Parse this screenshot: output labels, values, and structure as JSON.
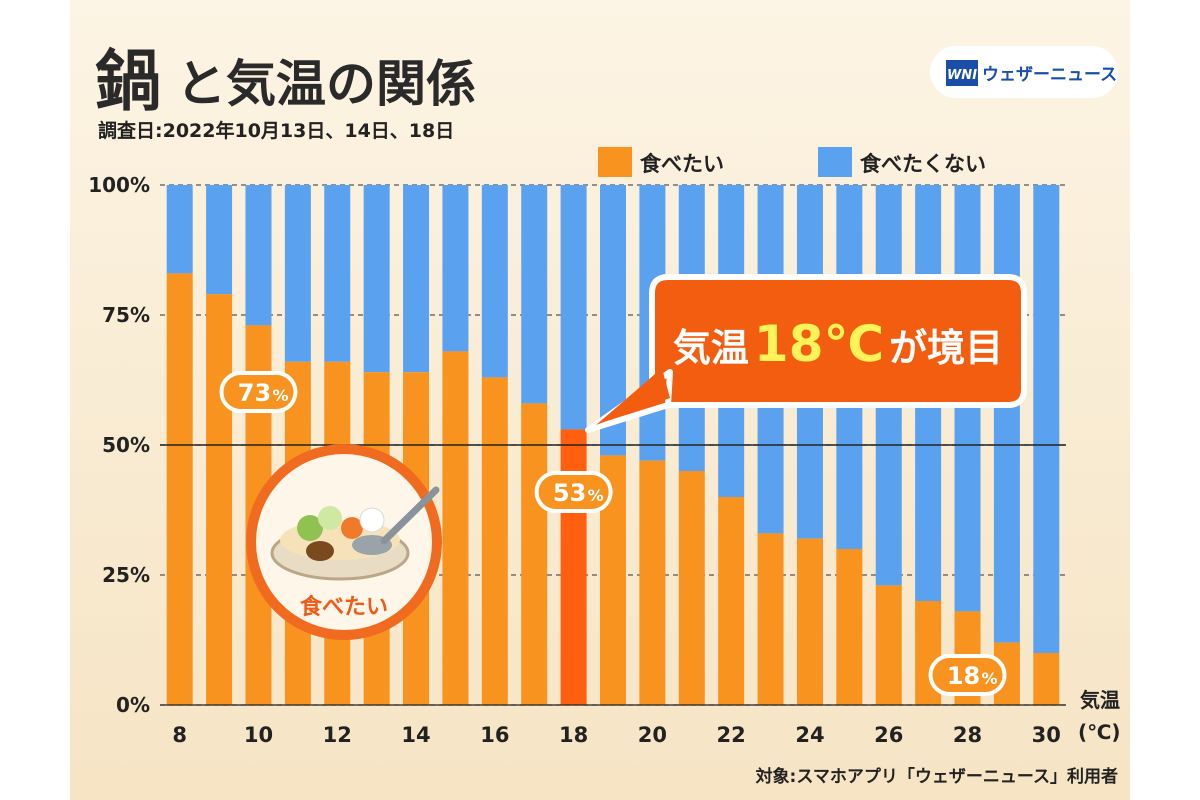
{
  "title": {
    "char1": "鍋",
    "rest": "と気温の関係"
  },
  "survey_date": "調査日:2022年10月13日、14日、18日",
  "brand": {
    "logo": "WNI",
    "name": "ウェザーニュース"
  },
  "source": "対象:スマホアプリ「ウェザーニュース」利用者",
  "callout": {
    "pre": "気温",
    "big": "18℃",
    "post": "が境目"
  },
  "pills": [
    {
      "x": 10,
      "num": "73",
      "pct": "%"
    },
    {
      "x": 18,
      "num": "53",
      "pct": "%"
    },
    {
      "x": 28,
      "num": "18",
      "pct": "%"
    }
  ],
  "illustration": {
    "label": "食べたい"
  },
  "colors": {
    "want": "#f7931e",
    "not_want": "#5aa2ef",
    "highlight": "#ff5f0f",
    "callout": "#f25d10"
  },
  "chart_data": {
    "type": "bar",
    "stacked": true,
    "percent_axis": true,
    "categories": [
      8,
      9,
      10,
      11,
      12,
      13,
      14,
      15,
      16,
      17,
      18,
      19,
      20,
      21,
      22,
      23,
      24,
      25,
      26,
      27,
      28,
      29,
      30
    ],
    "series": [
      {
        "name": "食べたい",
        "values": [
          83,
          79,
          73,
          66,
          66,
          64,
          64,
          68,
          63,
          58,
          53,
          48,
          47,
          45,
          40,
          33,
          32,
          30,
          23,
          20,
          18,
          12,
          10
        ]
      },
      {
        "name": "食べたくない",
        "values": [
          17,
          21,
          27,
          34,
          34,
          36,
          36,
          32,
          37,
          42,
          47,
          52,
          53,
          55,
          60,
          67,
          68,
          70,
          77,
          80,
          82,
          88,
          90
        ]
      }
    ],
    "highlight_category": 18,
    "yticks": [
      "100%",
      "75%",
      "50%",
      "25%",
      "0%"
    ],
    "ytick_values": [
      100,
      75,
      50,
      25,
      0
    ],
    "xtick_labels": [
      "8",
      "10",
      "12",
      "14",
      "16",
      "18",
      "20",
      "22",
      "24",
      "26",
      "28",
      "30"
    ],
    "xlabel": {
      "line1": "気温",
      "line2": "(℃)"
    },
    "ylim": [
      0,
      100
    ],
    "legend_position": "top-right"
  }
}
